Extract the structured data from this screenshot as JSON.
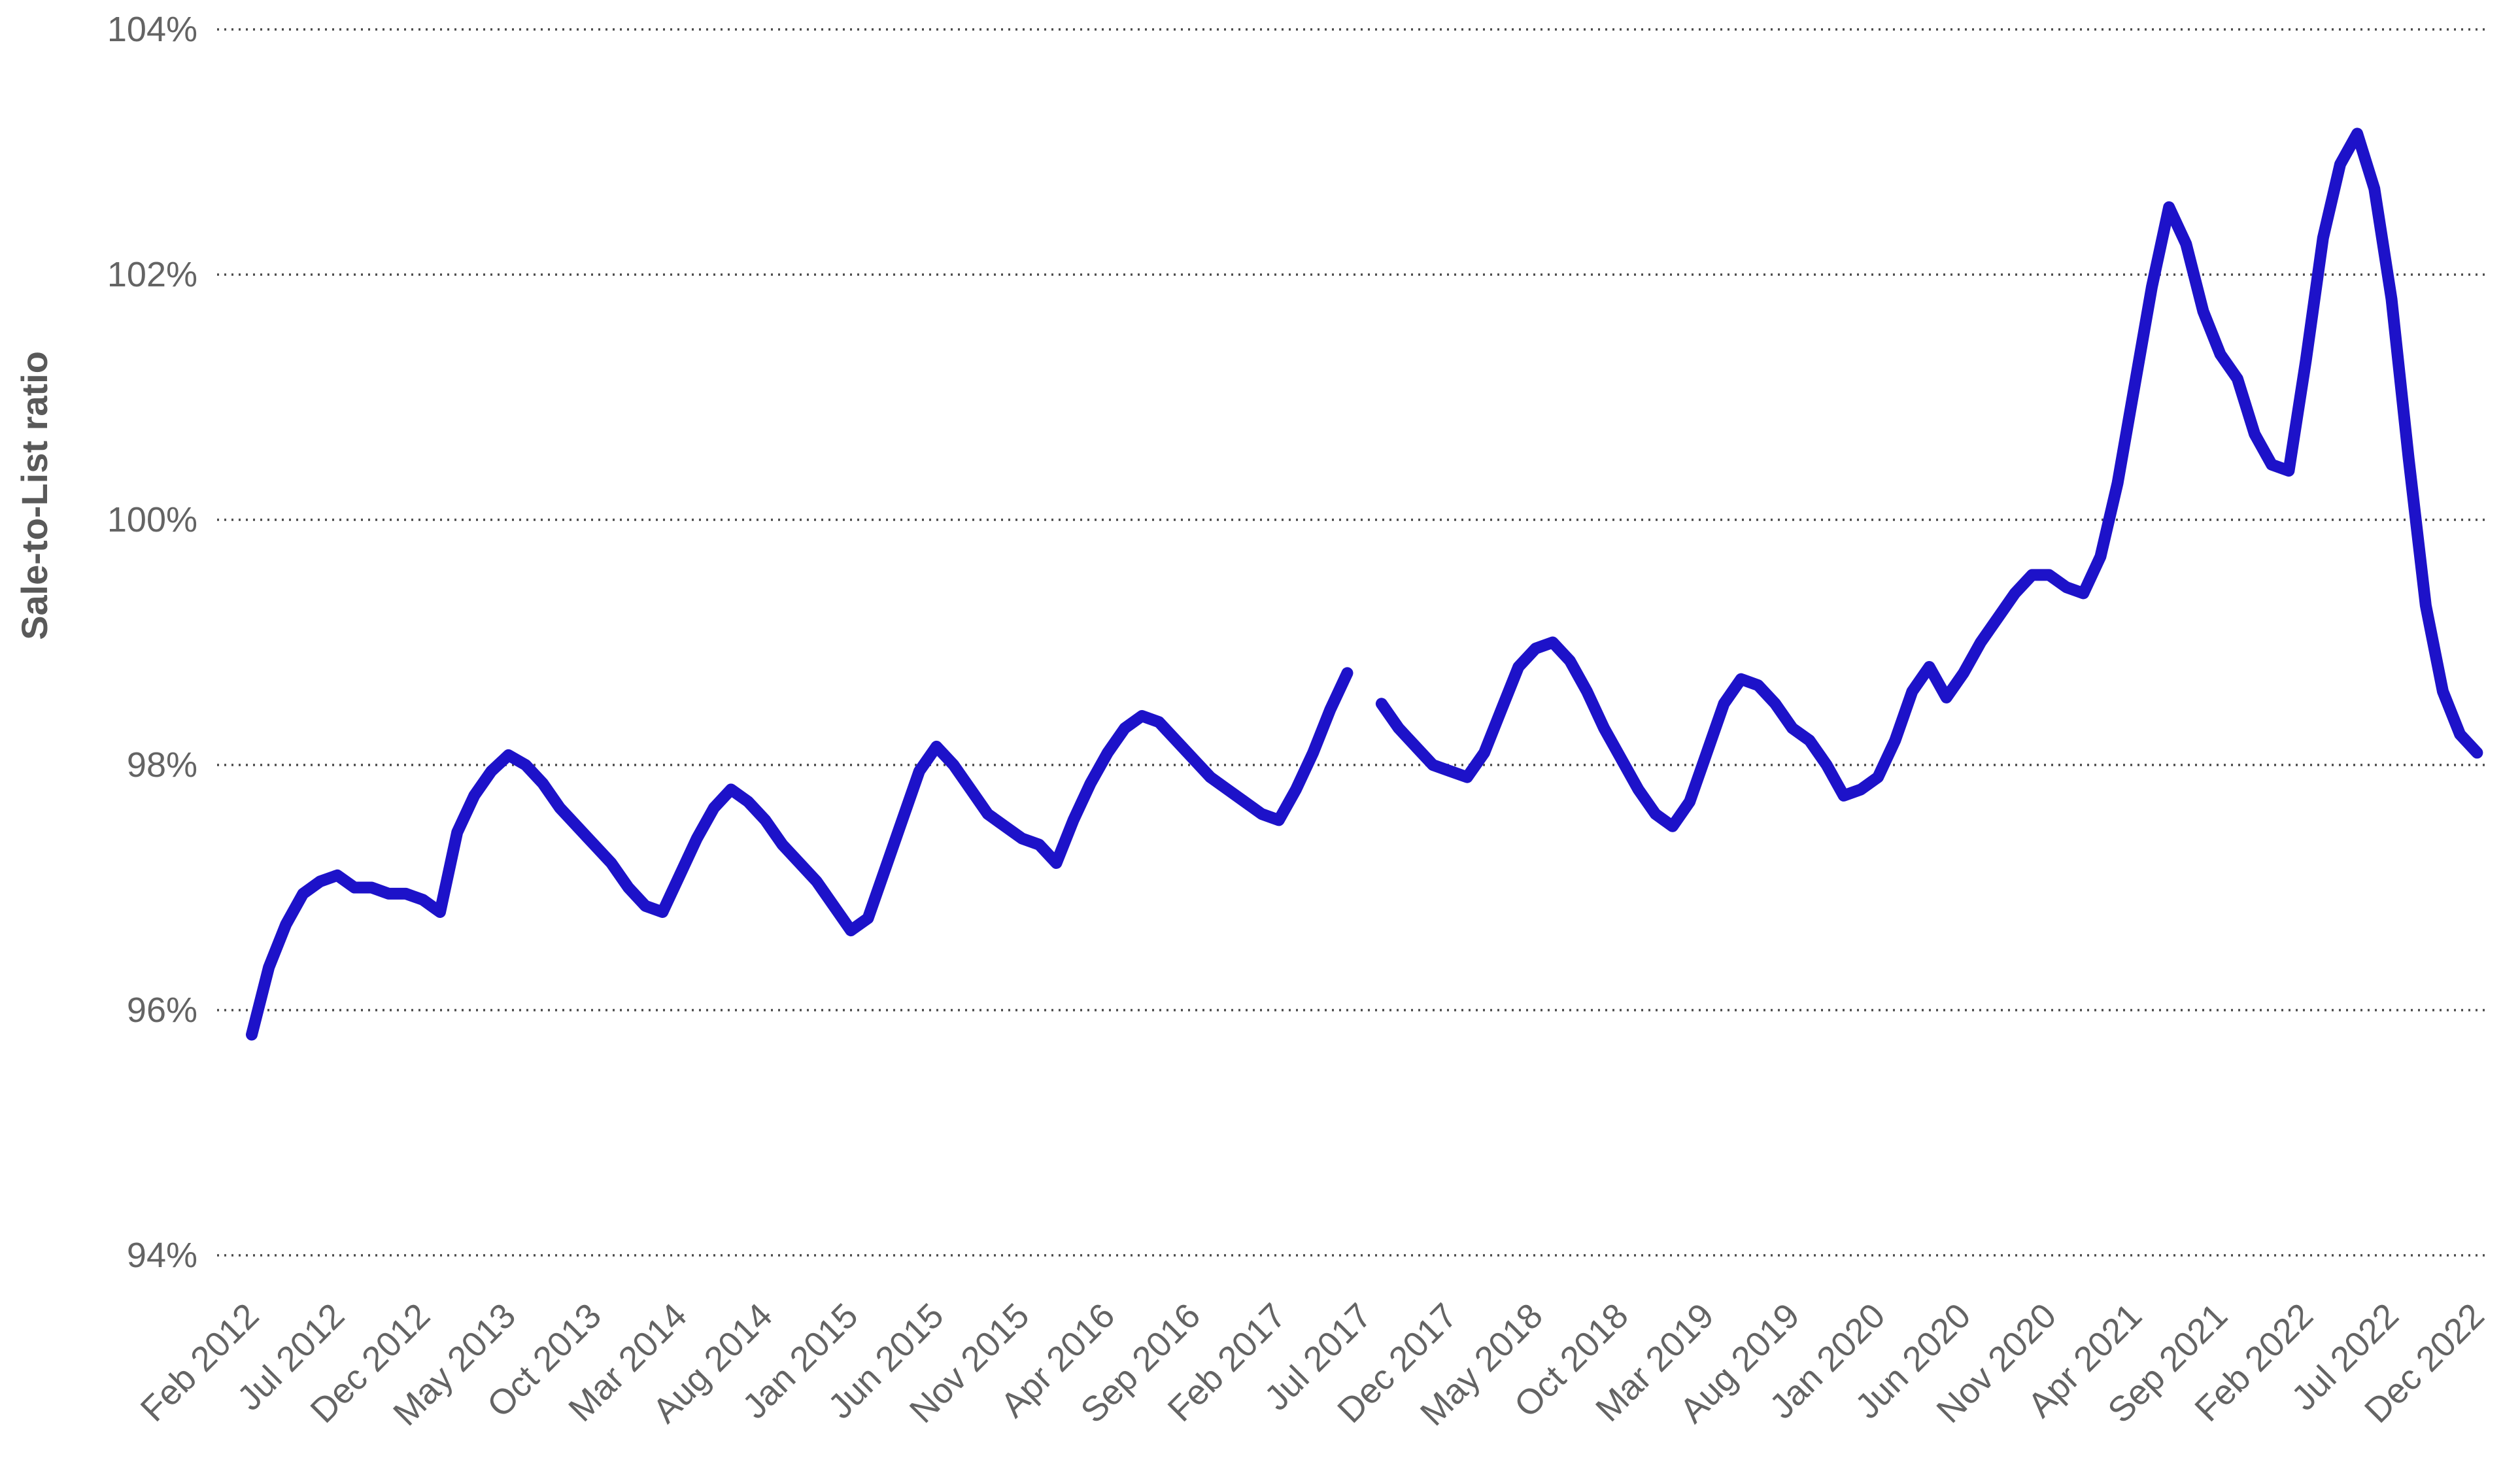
{
  "page": {
    "background": "#ffffff"
  },
  "chart_data": {
    "type": "line",
    "title": "",
    "xlabel": "",
    "ylabel": "Sale-to-List ratio",
    "series_name": "Sale-to-List ratio",
    "line_color": "#1d12c9",
    "grid": "dotted-horizontal",
    "legend": "none",
    "ylim": [
      94,
      104
    ],
    "y_ticks": [
      104,
      102,
      100,
      98,
      96,
      94
    ],
    "y_tick_labels": [
      "104%",
      "102%",
      "100%",
      "98%",
      "96%",
      "94%"
    ],
    "x_tick_every_n_months": 5,
    "x_tick_labels": [
      "Feb 2012",
      "Jul 2012",
      "Dec 2012",
      "May 2013",
      "Oct 2013",
      "Mar 2014",
      "Aug 2014",
      "Jan 2015",
      "Jun 2015",
      "Nov 2015",
      "Apr 2016",
      "Sep 2016",
      "Feb 2017",
      "Jul 2017",
      "Dec 2017",
      "May 2018",
      "Oct 2018",
      "Mar 2019",
      "Aug 2019",
      "Jan 2020",
      "Jun 2020",
      "Nov 2020",
      "Apr 2021",
      "Sep 2021",
      "Feb 2022",
      "Jul 2022",
      "Dec 2022"
    ],
    "x_labels_all": [
      "Feb 2012",
      "Mar 2012",
      "Apr 2012",
      "May 2012",
      "Jun 2012",
      "Jul 2012",
      "Aug 2012",
      "Sep 2012",
      "Oct 2012",
      "Nov 2012",
      "Dec 2012",
      "Jan 2013",
      "Feb 2013",
      "Mar 2013",
      "Apr 2013",
      "May 2013",
      "Jun 2013",
      "Jul 2013",
      "Aug 2013",
      "Sep 2013",
      "Oct 2013",
      "Nov 2013",
      "Dec 2013",
      "Jan 2014",
      "Feb 2014",
      "Mar 2014",
      "Apr 2014",
      "May 2014",
      "Jun 2014",
      "Jul 2014",
      "Aug 2014",
      "Sep 2014",
      "Oct 2014",
      "Nov 2014",
      "Dec 2014",
      "Jan 2015",
      "Feb 2015",
      "Mar 2015",
      "Apr 2015",
      "May 2015",
      "Jun 2015",
      "Jul 2015",
      "Aug 2015",
      "Sep 2015",
      "Oct 2015",
      "Nov 2015",
      "Dec 2015",
      "Jan 2016",
      "Feb 2016",
      "Mar 2016",
      "Apr 2016",
      "May 2016",
      "Jun 2016",
      "Jul 2016",
      "Aug 2016",
      "Sep 2016",
      "Oct 2016",
      "Nov 2016",
      "Dec 2016",
      "Jan 2017",
      "Feb 2017",
      "Mar 2017",
      "Apr 2017",
      "May 2017",
      "Jun 2017",
      "Jul 2017",
      "Aug 2017",
      "Sep 2017",
      "Oct 2017",
      "Nov 2017",
      "Dec 2017",
      "Jan 2018",
      "Feb 2018",
      "Mar 2018",
      "Apr 2018",
      "May 2018",
      "Jun 2018",
      "Jul 2018",
      "Aug 2018",
      "Sep 2018",
      "Oct 2018",
      "Nov 2018",
      "Dec 2018",
      "Jan 2019",
      "Feb 2019",
      "Mar 2019",
      "Apr 2019",
      "May 2019",
      "Jun 2019",
      "Jul 2019",
      "Aug 2019",
      "Sep 2019",
      "Oct 2019",
      "Nov 2019",
      "Dec 2019",
      "Jan 2020",
      "Feb 2020",
      "Mar 2020",
      "Apr 2020",
      "May 2020",
      "Jun 2020",
      "Jul 2020",
      "Aug 2020",
      "Sep 2020",
      "Oct 2020",
      "Nov 2020",
      "Dec 2020",
      "Jan 2021",
      "Feb 2021",
      "Mar 2021",
      "Apr 2021",
      "May 2021",
      "Jun 2021",
      "Jul 2021",
      "Aug 2021",
      "Sep 2021",
      "Oct 2021",
      "Nov 2021",
      "Dec 2021",
      "Jan 2022",
      "Feb 2022",
      "Mar 2022",
      "Apr 2022",
      "May 2022",
      "Jun 2022",
      "Jul 2022",
      "Aug 2022",
      "Sep 2022",
      "Oct 2022",
      "Nov 2022",
      "Dec 2022"
    ],
    "values": [
      95.8,
      96.35,
      96.7,
      96.95,
      97.05,
      97.1,
      97.0,
      97.0,
      96.95,
      96.95,
      96.9,
      96.8,
      97.45,
      97.75,
      97.95,
      98.08,
      98.0,
      97.85,
      97.65,
      97.5,
      97.35,
      97.2,
      97.0,
      96.85,
      96.8,
      97.1,
      97.4,
      97.65,
      97.8,
      97.7,
      97.55,
      97.35,
      97.2,
      97.05,
      96.85,
      96.65,
      96.75,
      97.15,
      97.55,
      97.95,
      98.15,
      98.0,
      97.8,
      97.6,
      97.5,
      97.4,
      97.35,
      97.2,
      97.55,
      97.85,
      98.1,
      98.3,
      98.4,
      98.35,
      98.2,
      98.05,
      97.9,
      97.8,
      97.7,
      97.6,
      97.55,
      97.8,
      98.1,
      98.45,
      98.75,
      null,
      98.5,
      98.3,
      98.15,
      98.0,
      97.95,
      97.9,
      98.1,
      98.45,
      98.8,
      98.95,
      99.0,
      98.85,
      98.6,
      98.3,
      98.05,
      97.8,
      97.6,
      97.5,
      97.7,
      98.1,
      98.5,
      98.7,
      98.65,
      98.5,
      98.3,
      98.2,
      98.0,
      97.75,
      97.8,
      97.9,
      98.2,
      98.6,
      98.8,
      98.55,
      98.75,
      99.0,
      99.2,
      99.4,
      99.55,
      99.55,
      99.45,
      99.4,
      99.7,
      100.3,
      101.1,
      101.9,
      102.55,
      102.25,
      101.7,
      101.35,
      101.15,
      100.7,
      100.45,
      100.4,
      101.3,
      102.3,
      102.9,
      103.15,
      102.7,
      101.8,
      100.5,
      99.3,
      98.6,
      98.25,
      98.1
    ],
    "styles": {
      "tick_label_color": "#646464",
      "axis_title_color": "#595959",
      "gridline_color": "#4a4a4a",
      "tick_font_size": 54,
      "axis_title_font_size": 56,
      "line_width": 18
    }
  }
}
